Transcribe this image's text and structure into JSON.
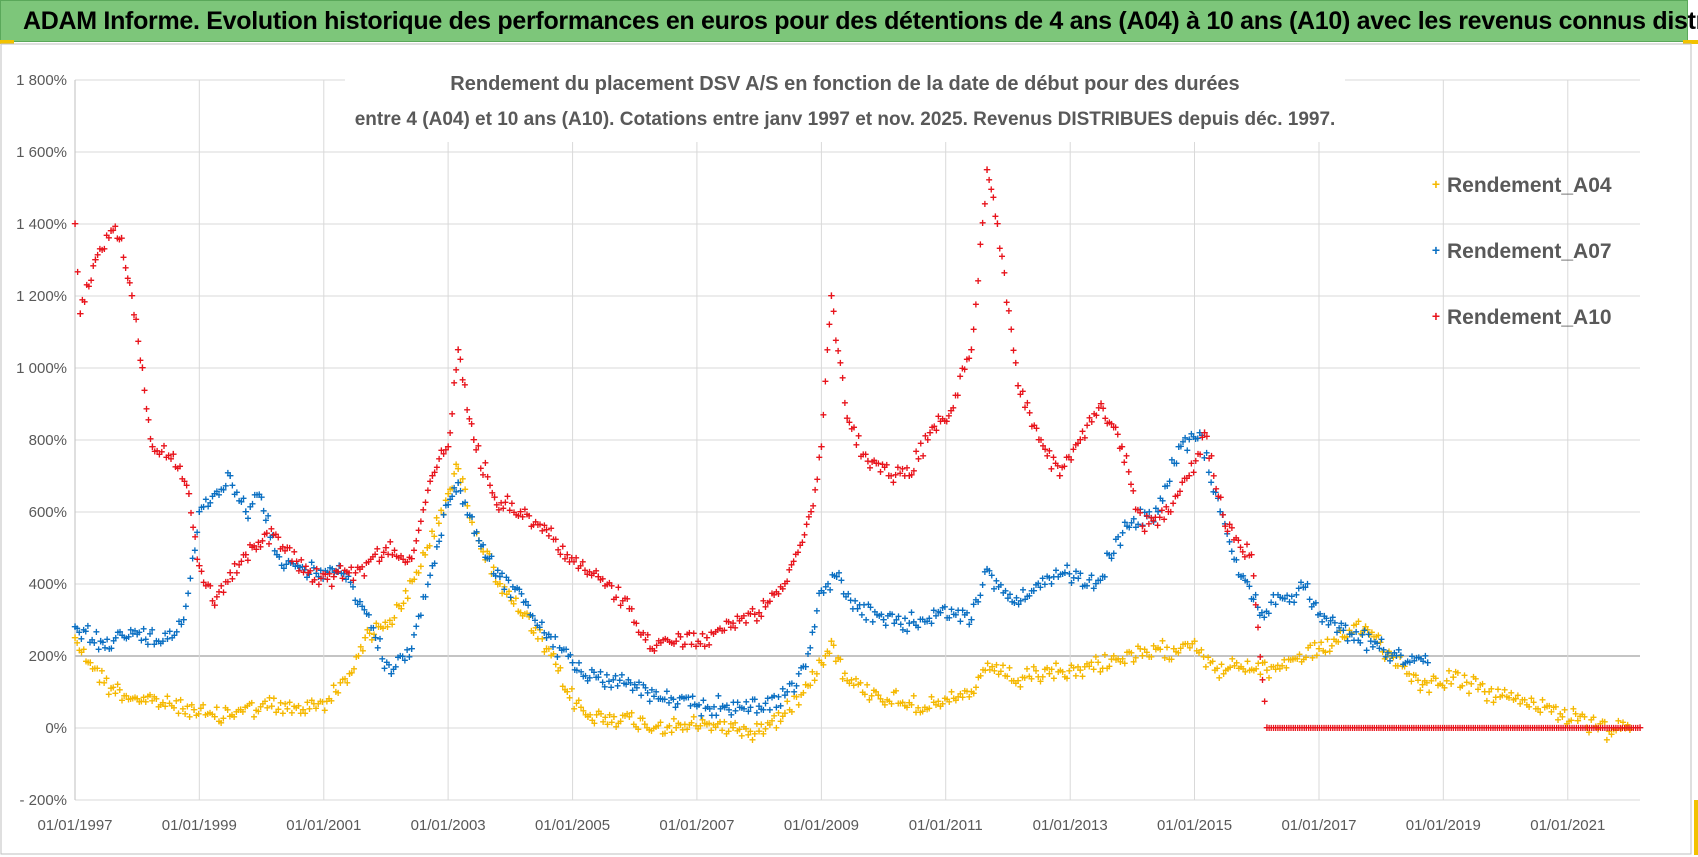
{
  "banner": {
    "title": "ADAM Informe. Evolution historique des performances en euros pour des détentions de 4 ans (A04) à 10 ans (A10) avec les revenus connus distribués"
  },
  "colors": {
    "banner_bg": "#7dc67a",
    "accent_corner": "#f2c200",
    "A04": "#f5b800",
    "A07": "#0a6fc2",
    "A10": "#e8141c",
    "grid": "#d9d9d9",
    "axis_text": "#595959"
  },
  "chart_data": {
    "type": "scatter",
    "title_line1": "Rendement du placement DSV A/S en fonction de la date de début pour des durées",
    "title_line2": "entre 4 (A04) et 10 ans (A10). Cotations entre janv 1997 et nov. 2025. Revenus DISTRIBUES depuis déc. 1997.",
    "x_axis": {
      "min": "1997-01-01",
      "max": "2022-03-01",
      "tick_labels": [
        "01/01/1997",
        "01/01/1999",
        "01/01/2001",
        "01/01/2003",
        "01/01/2005",
        "01/01/2007",
        "01/01/2009",
        "01/01/2011",
        "01/01/2013",
        "01/01/2015",
        "01/01/2017",
        "01/01/2019",
        "01/01/2021"
      ],
      "tick_dates": [
        "1997-01-01",
        "1999-01-01",
        "2001-01-01",
        "2003-01-01",
        "2005-01-01",
        "2007-01-01",
        "2009-01-01",
        "2011-01-01",
        "2013-01-01",
        "2015-01-01",
        "2017-01-01",
        "2019-01-01",
        "2021-01-01"
      ]
    },
    "y_axis": {
      "min": -200,
      "max": 1800,
      "step": 200,
      "tick_labels": [
        "- 200%",
        "0%",
        "200%",
        "400%",
        "600%",
        "800%",
        "1 000%",
        "1 200%",
        "1 400%",
        "1 600%",
        "1 800%"
      ]
    },
    "grid": true,
    "legend_position": "top-right",
    "series": [
      {
        "name": "Rendement_A04",
        "color": "#f5b800",
        "points": [
          [
            "1997-01-01",
            250
          ],
          [
            "1997-04-01",
            180
          ],
          [
            "1997-08-01",
            110
          ],
          [
            "1998-01-01",
            80
          ],
          [
            "1998-06-01",
            70
          ],
          [
            "1998-12-01",
            50
          ],
          [
            "1999-04-01",
            30
          ],
          [
            "1999-09-01",
            50
          ],
          [
            "2000-03-01",
            60
          ],
          [
            "2000-09-01",
            50
          ],
          [
            "2001-02-01",
            80
          ],
          [
            "2001-06-01",
            150
          ],
          [
            "2001-09-01",
            250
          ],
          [
            "2001-12-01",
            280
          ],
          [
            "2002-04-01",
            330
          ],
          [
            "2002-09-01",
            500
          ],
          [
            "2003-01-01",
            650
          ],
          [
            "2003-03-01",
            720
          ],
          [
            "2003-07-01",
            520
          ],
          [
            "2003-11-01",
            400
          ],
          [
            "2004-03-01",
            320
          ],
          [
            "2004-08-01",
            220
          ],
          [
            "2004-12-01",
            100
          ],
          [
            "2005-04-01",
            30
          ],
          [
            "2005-09-01",
            30
          ],
          [
            "2006-03-01",
            10
          ],
          [
            "2006-09-01",
            0
          ],
          [
            "2007-03-01",
            10
          ],
          [
            "2007-08-01",
            0
          ],
          [
            "2008-01-01",
            -10
          ],
          [
            "2008-06-01",
            40
          ],
          [
            "2008-10-01",
            120
          ],
          [
            "2009-01-01",
            180
          ],
          [
            "2009-03-01",
            240
          ],
          [
            "2009-06-01",
            130
          ],
          [
            "2009-12-01",
            90
          ],
          [
            "2010-06-01",
            70
          ],
          [
            "2010-12-01",
            60
          ],
          [
            "2011-06-01",
            100
          ],
          [
            "2011-10-01",
            170
          ],
          [
            "2012-03-01",
            130
          ],
          [
            "2012-09-01",
            150
          ],
          [
            "2013-03-01",
            160
          ],
          [
            "2013-09-01",
            190
          ],
          [
            "2014-03-01",
            200
          ],
          [
            "2014-09-01",
            220
          ],
          [
            "2015-01-01",
            240
          ],
          [
            "2015-05-01",
            160
          ],
          [
            "2015-10-01",
            170
          ],
          [
            "2016-03-01",
            160
          ],
          [
            "2016-08-01",
            190
          ],
          [
            "2017-01-01",
            220
          ],
          [
            "2017-06-01",
            250
          ],
          [
            "2017-10-01",
            280
          ],
          [
            "2018-03-01",
            200
          ],
          [
            "2018-09-01",
            120
          ],
          [
            "2019-03-01",
            140
          ],
          [
            "2019-09-01",
            100
          ],
          [
            "2020-03-01",
            80
          ],
          [
            "2020-09-01",
            60
          ],
          [
            "2021-03-01",
            20
          ],
          [
            "2021-09-01",
            -10
          ],
          [
            "2022-01-01",
            -5
          ]
        ]
      },
      {
        "name": "Rendement_A07",
        "color": "#0a6fc2",
        "points": [
          [
            "1997-01-01",
            280
          ],
          [
            "1997-06-01",
            240
          ],
          [
            "1998-01-01",
            260
          ],
          [
            "1998-06-01",
            240
          ],
          [
            "1998-10-01",
            300
          ],
          [
            "1999-01-01",
            600
          ],
          [
            "1999-04-01",
            650
          ],
          [
            "1999-07-01",
            700
          ],
          [
            "1999-10-01",
            600
          ],
          [
            "2000-01-01",
            640
          ],
          [
            "2000-04-01",
            480
          ],
          [
            "2000-08-01",
            450
          ],
          [
            "2000-12-01",
            420
          ],
          [
            "2001-04-01",
            450
          ],
          [
            "2001-08-01",
            350
          ],
          [
            "2001-11-01",
            250
          ],
          [
            "2002-02-01",
            150
          ],
          [
            "2002-06-01",
            220
          ],
          [
            "2002-10-01",
            450
          ],
          [
            "2003-01-01",
            620
          ],
          [
            "2003-03-01",
            680
          ],
          [
            "2003-07-01",
            520
          ],
          [
            "2003-11-01",
            420
          ],
          [
            "2004-04-01",
            350
          ],
          [
            "2004-08-01",
            250
          ],
          [
            "2005-01-01",
            180
          ],
          [
            "2005-06-01",
            140
          ],
          [
            "2006-01-01",
            120
          ],
          [
            "2006-06-01",
            80
          ],
          [
            "2007-01-01",
            60
          ],
          [
            "2007-06-01",
            60
          ],
          [
            "2008-01-01",
            60
          ],
          [
            "2008-06-01",
            90
          ],
          [
            "2008-10-01",
            170
          ],
          [
            "2009-01-01",
            380
          ],
          [
            "2009-04-01",
            420
          ],
          [
            "2009-08-01",
            330
          ],
          [
            "2010-01-01",
            300
          ],
          [
            "2010-06-01",
            290
          ],
          [
            "2010-12-01",
            320
          ],
          [
            "2011-06-01",
            300
          ],
          [
            "2011-09-01",
            440
          ],
          [
            "2012-01-01",
            360
          ],
          [
            "2012-06-01",
            380
          ],
          [
            "2012-12-01",
            430
          ],
          [
            "2013-06-01",
            400
          ],
          [
            "2013-12-01",
            560
          ],
          [
            "2014-06-01",
            600
          ],
          [
            "2014-10-01",
            780
          ],
          [
            "2015-02-01",
            820
          ],
          [
            "2015-06-01",
            600
          ],
          [
            "2015-10-01",
            420
          ],
          [
            "2016-02-01",
            320
          ],
          [
            "2016-06-01",
            360
          ],
          [
            "2016-10-01",
            390
          ],
          [
            "2017-02-01",
            310
          ],
          [
            "2017-07-01",
            260
          ],
          [
            "2017-11-01",
            240
          ],
          [
            "2018-04-01",
            200
          ],
          [
            "2018-10-01",
            180
          ]
        ]
      },
      {
        "name": "Rendement_A10",
        "color": "#e8141c",
        "points": [
          [
            "1997-01-01",
            1400
          ],
          [
            "1997-02-01",
            1150
          ],
          [
            "1997-05-01",
            1300
          ],
          [
            "1997-08-01",
            1380
          ],
          [
            "1997-10-01",
            1360
          ],
          [
            "1997-12-01",
            1200
          ],
          [
            "1998-02-01",
            1000
          ],
          [
            "1998-04-01",
            780
          ],
          [
            "1998-08-01",
            760
          ],
          [
            "1998-11-01",
            650
          ],
          [
            "1999-01-01",
            450
          ],
          [
            "1999-04-01",
            340
          ],
          [
            "1999-07-01",
            430
          ],
          [
            "1999-10-01",
            480
          ],
          [
            "2000-02-01",
            540
          ],
          [
            "2000-06-01",
            500
          ],
          [
            "2000-10-01",
            430
          ],
          [
            "2001-03-01",
            420
          ],
          [
            "2001-08-01",
            440
          ],
          [
            "2002-01-01",
            500
          ],
          [
            "2002-06-01",
            470
          ],
          [
            "2002-10-01",
            700
          ],
          [
            "2003-01-01",
            780
          ],
          [
            "2003-03-01",
            1050
          ],
          [
            "2003-06-01",
            800
          ],
          [
            "2003-10-01",
            640
          ],
          [
            "2004-03-01",
            600
          ],
          [
            "2004-08-01",
            550
          ],
          [
            "2004-12-01",
            480
          ],
          [
            "2005-06-01",
            420
          ],
          [
            "2005-12-01",
            330
          ],
          [
            "2006-04-01",
            220
          ],
          [
            "2006-09-01",
            240
          ],
          [
            "2007-03-01",
            250
          ],
          [
            "2007-08-01",
            290
          ],
          [
            "2008-01-01",
            320
          ],
          [
            "2008-06-01",
            400
          ],
          [
            "2008-11-01",
            600
          ],
          [
            "2009-01-01",
            780
          ],
          [
            "2009-03-01",
            1200
          ],
          [
            "2009-06-01",
            860
          ],
          [
            "2009-10-01",
            740
          ],
          [
            "2010-02-01",
            700
          ],
          [
            "2010-06-01",
            700
          ],
          [
            "2010-10-01",
            820
          ],
          [
            "2011-02-01",
            880
          ],
          [
            "2011-06-01",
            1050
          ],
          [
            "2011-09-01",
            1550
          ],
          [
            "2011-11-01",
            1400
          ],
          [
            "2012-03-01",
            950
          ],
          [
            "2012-07-01",
            800
          ],
          [
            "2012-11-01",
            700
          ],
          [
            "2013-03-01",
            800
          ],
          [
            "2013-07-01",
            900
          ],
          [
            "2013-11-01",
            780
          ],
          [
            "2014-03-01",
            560
          ],
          [
            "2014-08-01",
            600
          ],
          [
            "2014-12-01",
            700
          ],
          [
            "2015-03-01",
            820
          ],
          [
            "2015-07-01",
            560
          ],
          [
            "2015-12-01",
            480
          ],
          [
            "2016-03-01",
            0
          ],
          [
            "2022-03-01",
            0
          ]
        ]
      }
    ]
  }
}
